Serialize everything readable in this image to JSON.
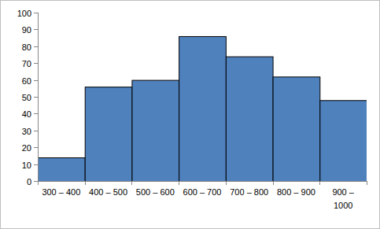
{
  "chart_data": {
    "type": "bar",
    "categories": [
      "300 – 400",
      "400 – 500",
      "500 – 600",
      "600 – 700",
      "700 – 800",
      "800 – 900",
      "900 – 1000"
    ],
    "values": [
      14,
      56,
      60,
      86,
      74,
      62,
      48
    ],
    "color": "#4f81bd",
    "ylim": [
      0,
      100
    ],
    "yticks": [
      0,
      10,
      20,
      30,
      40,
      50,
      60,
      70,
      80,
      90,
      100
    ],
    "grid": false
  }
}
